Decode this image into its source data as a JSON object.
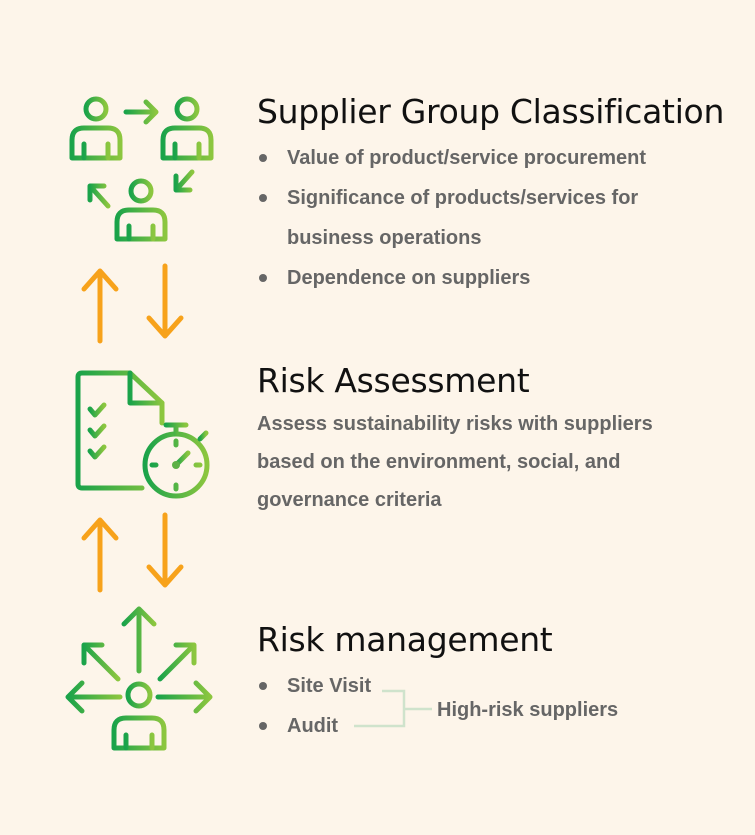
{
  "sections": {
    "supplier_group": {
      "title": "Supplier Group Classification",
      "bullets": [
        "Value of product/service procurement",
        "Significance of products/services for business operations",
        "Dependence on suppliers"
      ]
    },
    "risk_assessment": {
      "title": "Risk Assessment",
      "description": "Assess sustainability risks with suppliers based on the environment, social, and governance criteria"
    },
    "risk_management": {
      "title": "Risk management",
      "bullets": [
        "Site Visit",
        "Audit"
      ],
      "bracket_label": "High-risk suppliers"
    }
  },
  "colors": {
    "background": "#fdf5ea",
    "green_dark": "#1aa34a",
    "green_light": "#7cc242",
    "arrow_orange": "#f7a21b",
    "text_dark": "#111111",
    "text_gray": "#666666",
    "bracket": "#cfe3cc"
  },
  "icons": [
    "people-cycle-icon",
    "checklist-timer-icon",
    "person-arrows-icon",
    "up-arrow-icon",
    "down-arrow-icon"
  ]
}
